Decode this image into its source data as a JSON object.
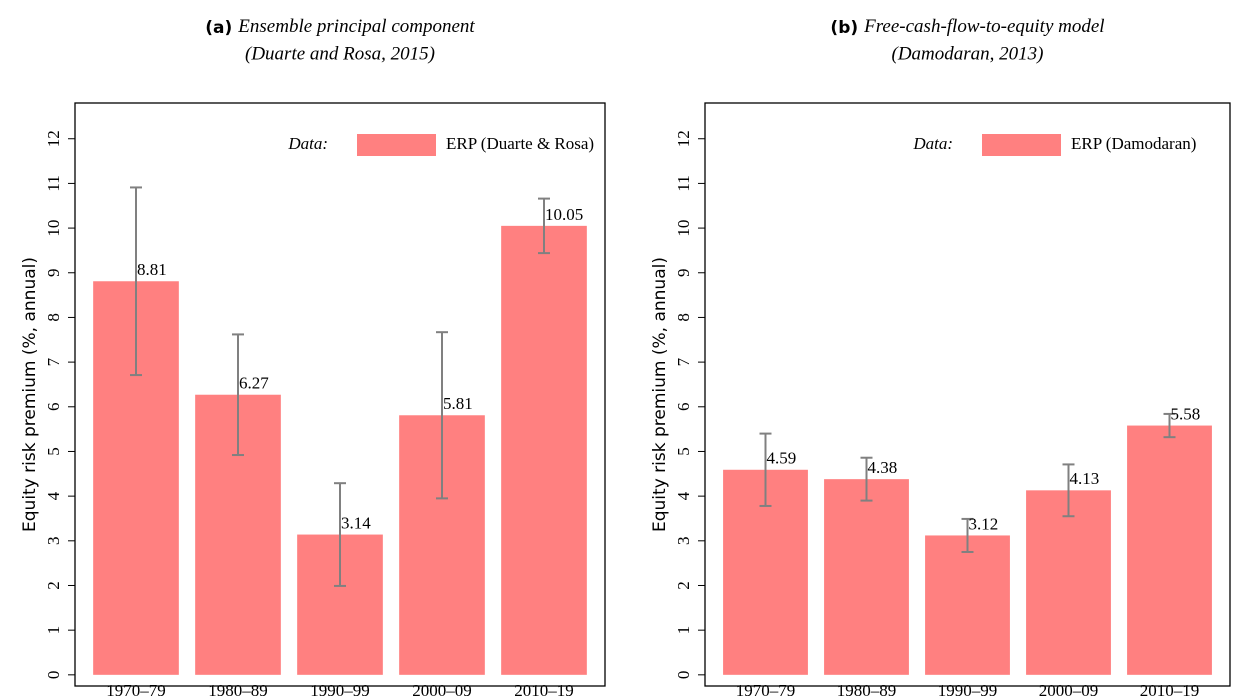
{
  "chart_data": [
    {
      "type": "bar",
      "label": "(a)",
      "title": "Ensemble principal component",
      "subtitle": "(Duarte and Rosa, 2015)",
      "ylabel": "Equity risk premium (%, annual)",
      "legend_title": "Data:",
      "categories": [
        "1970–79",
        "1980–89",
        "1990–99",
        "2000–09",
        "2010–19"
      ],
      "series": [
        {
          "name": "ERP (Duarte & Rosa)",
          "color": "#ff8080",
          "values": [
            8.81,
            6.27,
            3.14,
            5.81,
            10.05
          ],
          "errors": [
            2.1,
            1.35,
            1.15,
            1.86,
            0.61
          ]
        }
      ],
      "ylim": [
        -0.25,
        12.8
      ],
      "yticks": [
        0,
        1,
        2,
        3,
        4,
        5,
        6,
        7,
        8,
        9,
        10,
        11,
        12
      ],
      "grid": false,
      "legend": "upper right"
    },
    {
      "type": "bar",
      "label": "(b)",
      "title": "Free-cash-flow-to-equity model",
      "subtitle": "(Damodaran, 2013)",
      "ylabel": "Equity risk premium (%, annual)",
      "legend_title": "Data:",
      "categories": [
        "1970–79",
        "1980–89",
        "1990–99",
        "2000–09",
        "2010–19"
      ],
      "series": [
        {
          "name": "ERP (Damodaran)",
          "color": "#ff8080",
          "values": [
            4.59,
            4.38,
            3.12,
            4.13,
            5.58
          ],
          "errors": [
            0.81,
            0.48,
            0.37,
            0.58,
            0.26
          ]
        }
      ],
      "ylim": [
        -0.25,
        12.8
      ],
      "yticks": [
        0,
        1,
        2,
        3,
        4,
        5,
        6,
        7,
        8,
        9,
        10,
        11,
        12
      ],
      "grid": false,
      "legend": "upper right"
    }
  ]
}
